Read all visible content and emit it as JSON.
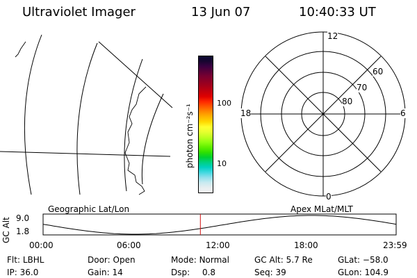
{
  "header": {
    "title": "Ultraviolet Imager",
    "date": "13 Jun 07",
    "time": "10:40:33 UT"
  },
  "colorbar": {
    "unit_label": "photon cm⁻²s⁻¹",
    "tick_labels": [
      "100",
      "10"
    ],
    "tick_values": [
      100,
      10
    ],
    "colors": [
      "#0a0a32",
      "#180530",
      "#3a0040",
      "#5a0038",
      "#7a0030",
      "#900024",
      "#a80018",
      "#c4000c",
      "#e00000",
      "#ff2800",
      "#ff5a00",
      "#ff8a00",
      "#ffb400",
      "#ffd800",
      "#ffff30",
      "#e6ff30",
      "#c0ff20",
      "#90ff10",
      "#60f000",
      "#30e000",
      "#00d030",
      "#00d080",
      "#00d0c0",
      "#40d8e0",
      "#90e0ec",
      "#c8eaf0",
      "#e6eef0",
      "#f4f4f4"
    ]
  },
  "polar_grid": {
    "labels": {
      "top": "12",
      "right": "6",
      "left": "18",
      "bottom": "0"
    },
    "ring_labels": [
      "60",
      "70",
      "80"
    ]
  },
  "timeline": {
    "axis_label": "GC Alt",
    "y_ticks": [
      "9.0",
      "1.8"
    ],
    "left_title": "Geographic Lat/Lon",
    "right_title": "Apex MLat/MLT",
    "x_ticks": [
      "00:00",
      "06:00",
      "12:00",
      "18:00",
      "23:59"
    ],
    "current_time_fraction": 0.4455,
    "line_color": "#000000",
    "marker_color": "#d01010"
  },
  "status": {
    "row1": [
      {
        "label": "Flt:",
        "value": "LBHL"
      },
      {
        "label": "Door:",
        "value": "Open"
      },
      {
        "label": "Mode:",
        "value": "Normal"
      },
      {
        "label": "GC Alt:",
        "value": "5.7 Re"
      },
      {
        "label": "GLat:",
        "value": "−58.0"
      }
    ],
    "row2": [
      {
        "label": "IP:",
        "value": "36.0"
      },
      {
        "label": "Gain:",
        "value": "14"
      },
      {
        "label": "Dsp:",
        "value": "0.8"
      },
      {
        "label": "Seq:",
        "value": "39"
      },
      {
        "label": "GLon:",
        "value": "104.9"
      }
    ]
  }
}
